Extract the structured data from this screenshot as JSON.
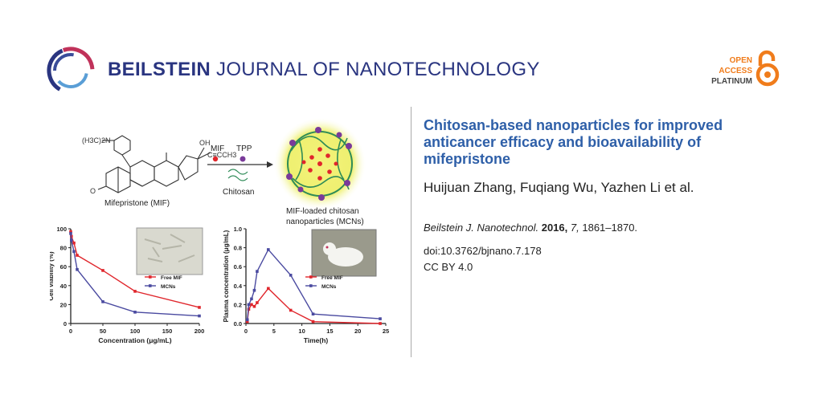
{
  "header": {
    "journal_bold": "BEILSTEIN",
    "journal_rest": " JOURNAL OF NANOTECHNOLOGY",
    "logo_icon": "beilstein-ring-icon",
    "open_access": [
      "OPEN",
      "ACCESS",
      "PLATINUM"
    ],
    "open_access_icon": "open-lock-icon",
    "colors": {
      "journal": "#2a3580",
      "accent_orange": "#f07c1b",
      "title_blue": "#2e5fa8"
    }
  },
  "article": {
    "title": "Chitosan-based nanoparticles for improved anticancer efficacy and bioavailability of mifepristone",
    "authors": "Huijuan Zhang, Fuqiang Wu, Yazhen Li et al.",
    "citation": {
      "journal": "Beilstein J. Nanotechnol.",
      "year": "2016,",
      "volume": "7,",
      "pages": "1861–1870."
    },
    "doi": "doi:10.3762/bjnano.7.178",
    "license": "CC BY 4.0"
  },
  "scheme": {
    "formula_left": "(H3C)2N",
    "oh": "OH",
    "alkyne": "C≡CCH3",
    "ketone_o": "O",
    "compound": "Mifepristone (MIF)",
    "reagent1": "MIF",
    "reagent2": "TPP",
    "reagent3": "Chitosan",
    "product_line1": "MIF-loaded chitosan",
    "product_line2": "nanoparticles (MCNs)"
  },
  "chart_data": [
    {
      "type": "line",
      "xlabel": "Concentration (μg/mL)",
      "ylabel": "Cell viability (%)",
      "xlim": [
        0,
        200
      ],
      "ylim": [
        0,
        100
      ],
      "xticks": [
        "0",
        "50",
        "100",
        "150",
        "200"
      ],
      "yticks": [
        "0",
        "20",
        "40",
        "60",
        "80",
        "100"
      ],
      "legend_position": "center",
      "series": [
        {
          "name": "Free MIF",
          "color": "#e0262c",
          "x": [
            0,
            1,
            5,
            10,
            50,
            100,
            200
          ],
          "y": [
            97,
            92,
            85,
            72,
            56,
            34,
            17
          ]
        },
        {
          "name": "MCNs",
          "color": "#4a4aa0",
          "x": [
            0,
            1,
            5,
            10,
            50,
            100,
            200
          ],
          "y": [
            95,
            88,
            76,
            57,
            23,
            12,
            8
          ]
        }
      ]
    },
    {
      "type": "line",
      "xlabel": "Time(h)",
      "ylabel": "Plasma concentration (μg/mL)",
      "xlim": [
        0,
        25
      ],
      "ylim": [
        0,
        1.0
      ],
      "xticks": [
        "0",
        "5",
        "10",
        "15",
        "20",
        "25"
      ],
      "yticks": [
        "0.0",
        "0.2",
        "0.4",
        "0.6",
        "0.8",
        "1.0"
      ],
      "legend_position": "center",
      "series": [
        {
          "name": "Free MIF",
          "color": "#e0262c",
          "x": [
            0.25,
            0.5,
            1,
            1.5,
            2,
            4,
            8,
            12,
            24
          ],
          "y": [
            0.02,
            0.15,
            0.2,
            0.18,
            0.22,
            0.37,
            0.14,
            0.02,
            0.0
          ]
        },
        {
          "name": "MCNs",
          "color": "#4a4aa0",
          "x": [
            0.25,
            0.5,
            1,
            1.5,
            2,
            4,
            8,
            12,
            24
          ],
          "y": [
            0.04,
            0.2,
            0.26,
            0.35,
            0.55,
            0.78,
            0.51,
            0.1,
            0.05
          ]
        }
      ]
    }
  ]
}
